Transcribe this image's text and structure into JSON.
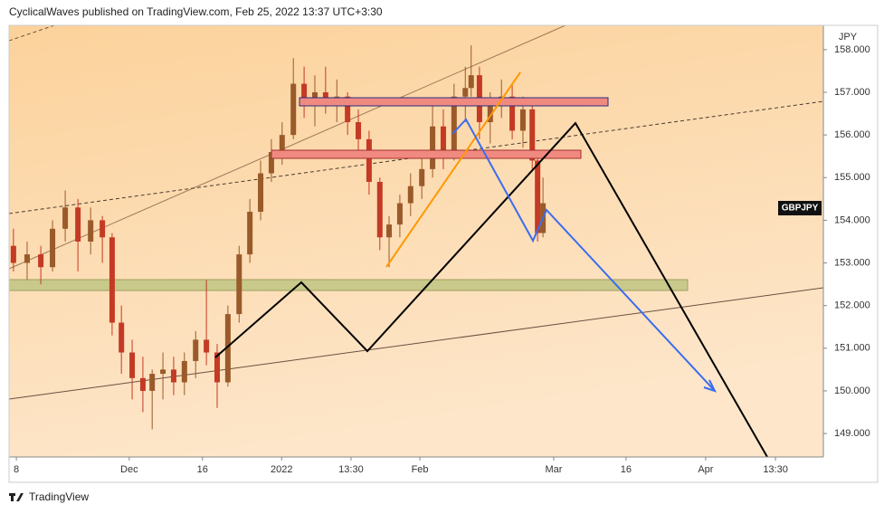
{
  "chart_data": {
    "type": "candlestick",
    "title": "CyclicalWaves published on TradingView.com, Feb 25, 2022 13:37 UTC+3:30",
    "symbol": "GBPJPY",
    "currency": "JPY",
    "brand": "TradingView",
    "up_color": "#9a5a2a",
    "down_color": "#c43a24",
    "x": [
      -0.6,
      2.2,
      5.0,
      7.4,
      10.0,
      12.6,
      15.2,
      17.6,
      19.6,
      21.5,
      23.7,
      25.9,
      27.8,
      30.0,
      32.2,
      34.4,
      36.7,
      38.9,
      41.1,
      43.3,
      45.6,
      47.8,
      50.0,
      52.2,
      54.4,
      56.7,
      58.9,
      61.1,
      63.3,
      65.6,
      67.8,
      70.0,
      72.2,
      74.4,
      76.3,
      78.5,
      80.7,
      83.0,
      85.2,
      87.4,
      89.6,
      91.9,
      93.1,
      94.8,
      97.0,
      99.3,
      101.5,
      103.7,
      105.6,
      106.7,
      107.8
    ],
    "open": [
      153.4,
      153.0,
      153.2,
      152.9,
      153.8,
      154.3,
      153.5,
      154.0,
      153.6,
      151.6,
      150.9,
      150.3,
      150.0,
      150.4,
      150.5,
      150.2,
      150.7,
      151.2,
      150.9,
      150.2,
      151.8,
      153.2,
      154.2,
      155.1,
      155.6,
      156.0,
      157.2,
      156.8,
      157.0,
      156.7,
      156.9,
      156.3,
      155.9,
      154.9,
      153.6,
      153.9,
      154.4,
      154.8,
      155.2,
      156.2,
      155.6,
      156.9,
      157.1,
      157.4,
      156.3,
      156.7,
      156.9,
      156.1,
      156.6,
      155.4,
      153.7
    ],
    "high": [
      153.8,
      153.5,
      153.4,
      154.0,
      154.7,
      154.5,
      154.3,
      154.1,
      153.7,
      152.0,
      151.2,
      150.8,
      150.5,
      150.9,
      150.8,
      150.9,
      151.4,
      152.6,
      151.1,
      152.0,
      153.4,
      154.5,
      155.4,
      155.9,
      156.3,
      157.8,
      157.6,
      157.4,
      157.6,
      157.3,
      157.0,
      156.6,
      156.1,
      155.0,
      154.1,
      154.6,
      155.1,
      155.5,
      156.7,
      156.6,
      157.2,
      157.6,
      158.1,
      157.6,
      157.0,
      157.3,
      157.2,
      156.9,
      156.8,
      155.5,
      155.0
    ],
    "low": [
      152.8,
      152.6,
      152.5,
      152.8,
      153.5,
      152.8,
      153.2,
      153.0,
      151.3,
      150.4,
      149.8,
      149.5,
      149.1,
      149.8,
      149.9,
      149.9,
      150.3,
      150.6,
      149.6,
      150.1,
      151.6,
      153.0,
      154.0,
      154.9,
      155.3,
      155.9,
      156.4,
      156.2,
      156.5,
      156.3,
      156.0,
      155.6,
      154.6,
      153.3,
      152.9,
      153.6,
      154.1,
      154.5,
      155.0,
      155.2,
      155.4,
      156.3,
      156.9,
      155.9,
      155.8,
      156.4,
      155.9,
      155.7,
      155.2,
      153.5,
      153.6
    ],
    "close": [
      153.0,
      153.2,
      152.9,
      153.8,
      154.3,
      153.5,
      154.0,
      153.6,
      151.6,
      150.9,
      150.3,
      150.0,
      150.4,
      150.5,
      150.2,
      150.7,
      151.2,
      150.9,
      150.2,
      151.8,
      153.2,
      154.2,
      155.1,
      155.6,
      156.0,
      157.2,
      156.8,
      157.0,
      156.7,
      156.9,
      156.3,
      155.9,
      154.9,
      153.6,
      153.9,
      154.4,
      154.8,
      155.2,
      156.2,
      155.6,
      156.9,
      157.1,
      157.4,
      156.3,
      156.7,
      156.9,
      156.1,
      156.6,
      155.4,
      153.7,
      154.4
    ],
    "xlim": [
      -1.5,
      165.2
    ],
    "xticks": [
      {
        "value": 0,
        "label": "8"
      },
      {
        "value": 23.1,
        "label": "Dec"
      },
      {
        "value": 38.1,
        "label": "16"
      },
      {
        "value": 54.3,
        "label": "2022"
      },
      {
        "value": 68.5,
        "label": "13:30"
      },
      {
        "value": 82.6,
        "label": "Feb"
      },
      {
        "value": 110,
        "label": "Mar"
      },
      {
        "value": 124.8,
        "label": "16"
      },
      {
        "value": 141.1,
        "label": "Apr"
      },
      {
        "value": 155.4,
        "label": "13:30"
      }
    ],
    "ylim": [
      148.45,
      158.57
    ],
    "yticks": [
      {
        "value": 149,
        "label": "149.000"
      },
      {
        "value": 150,
        "label": "150.000"
      },
      {
        "value": 151,
        "label": "151.000"
      },
      {
        "value": 152,
        "label": "152.000"
      },
      {
        "value": 153,
        "label": "153.000"
      },
      {
        "value": 154,
        "label": "154.000"
      },
      {
        "value": 155,
        "label": "155.000"
      },
      {
        "value": 156,
        "label": "156.000"
      },
      {
        "value": 157,
        "label": "157.000"
      },
      {
        "value": 158,
        "label": "158.000"
      }
    ]
  }
}
